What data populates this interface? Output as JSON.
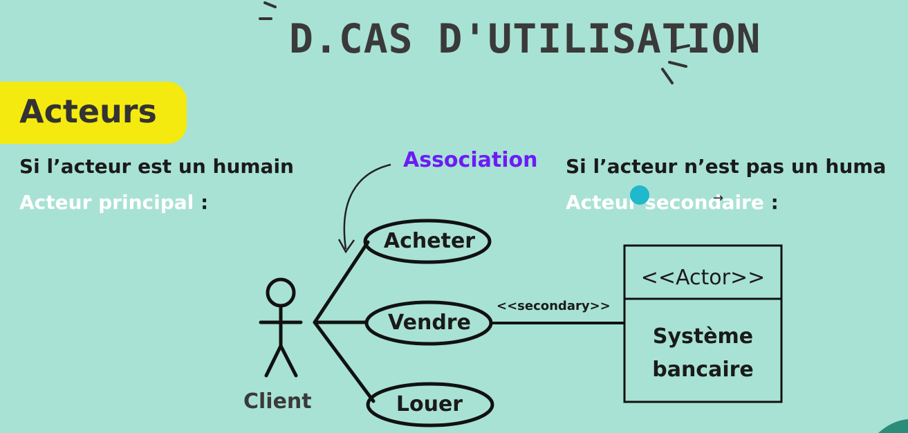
{
  "title": "D.CAS D'UTILISATION",
  "badge": "Acteurs",
  "left": {
    "line1": "Si l’acteur est un humain",
    "line2": "Acteur principal",
    "colon": ":"
  },
  "association_label": "Association",
  "right": {
    "line1": "Si l’acteur n’est pas un huma",
    "line2": "Acteur secondaire",
    "colon": ":"
  },
  "actor_name": "Client",
  "use_cases": [
    "Acheter",
    "Vendre",
    "Louer"
  ],
  "secondary_stereotype": "<<secondary>>",
  "system_box": {
    "stereotype": "<<Actor>>",
    "name_line1": "Système",
    "name_line2": "bancaire"
  },
  "cursor_arrow": "→",
  "colors": {
    "background": "#a8e2d4",
    "badge": "#f4ea10",
    "association": "#6b1cf5",
    "white_text": "#ffffff",
    "cursor": "#1fb8cc"
  }
}
